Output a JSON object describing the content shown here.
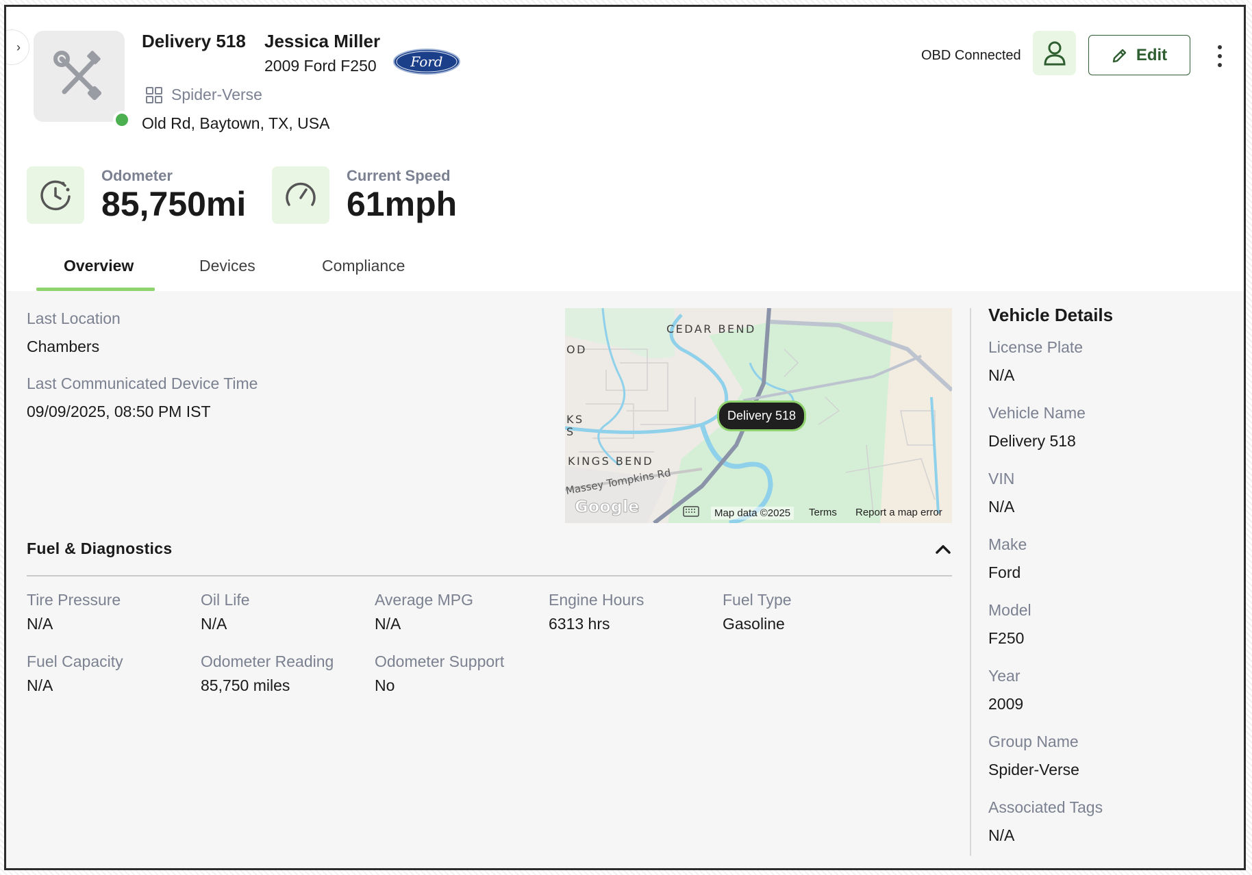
{
  "header": {
    "vehicle_title": "Delivery 518",
    "driver_name": "Jessica Miller",
    "vehicle_model": "2009 Ford F250",
    "make_logo": "Ford",
    "group": "Spider-Verse",
    "address": "Old Rd, Baytown, TX, USA",
    "status_color": "#4caf50",
    "obd_status": "OBD Connected",
    "edit_label": "Edit",
    "collapse_icon": "›"
  },
  "metrics": [
    {
      "label": "Odometer",
      "value": "85,750mi",
      "icon": "odometer-icon"
    },
    {
      "label": "Current Speed",
      "value": "61mph",
      "icon": "speedometer-icon"
    }
  ],
  "tabs": [
    {
      "label": "Overview",
      "active": true
    },
    {
      "label": "Devices",
      "active": false
    },
    {
      "label": "Compliance",
      "active": false
    }
  ],
  "overview": {
    "last_location_label": "Last Location",
    "last_location_value": "Chambers",
    "last_comm_label": "Last Communicated Device Time",
    "last_comm_value": "09/09/2025, 08:50 PM IST"
  },
  "map": {
    "marker_label": "Delivery 518",
    "labels": [
      "CEDAR BEND",
      "OD",
      "KS",
      "S",
      "KINGS BEND",
      "Massey Tompkins Rd"
    ],
    "logo": "Google",
    "attribution": "Map data ©2025",
    "terms": "Terms",
    "report": "Report a map error"
  },
  "fuel": {
    "title": "Fuel & Diagnostics",
    "fields": [
      {
        "label": "Tire Pressure",
        "value": "N/A"
      },
      {
        "label": "Oil Life",
        "value": "N/A"
      },
      {
        "label": "Average MPG",
        "value": "N/A"
      },
      {
        "label": "Engine Hours",
        "value": "6313 hrs"
      },
      {
        "label": "Fuel Type",
        "value": "Gasoline"
      },
      {
        "label": "Fuel Capacity",
        "value": "N/A"
      },
      {
        "label": "Odometer Reading",
        "value": "85,750 miles"
      },
      {
        "label": "Odometer Support",
        "value": "No"
      }
    ]
  },
  "vehicle_details": {
    "title": "Vehicle Details",
    "fields": [
      {
        "label": "License Plate",
        "value": "N/A"
      },
      {
        "label": "Vehicle Name",
        "value": "Delivery 518"
      },
      {
        "label": "VIN",
        "value": "N/A"
      },
      {
        "label": "Make",
        "value": "Ford"
      },
      {
        "label": "Model",
        "value": "F250"
      },
      {
        "label": "Year",
        "value": "2009"
      },
      {
        "label": "Group Name",
        "value": "Spider-Verse"
      },
      {
        "label": "Associated Tags",
        "value": "N/A"
      }
    ]
  },
  "colors": {
    "accent_green": "#8fd36f",
    "button_green": "#2f5e31",
    "icon_bg": "#eaf6e4",
    "muted_text": "#7b8190"
  }
}
